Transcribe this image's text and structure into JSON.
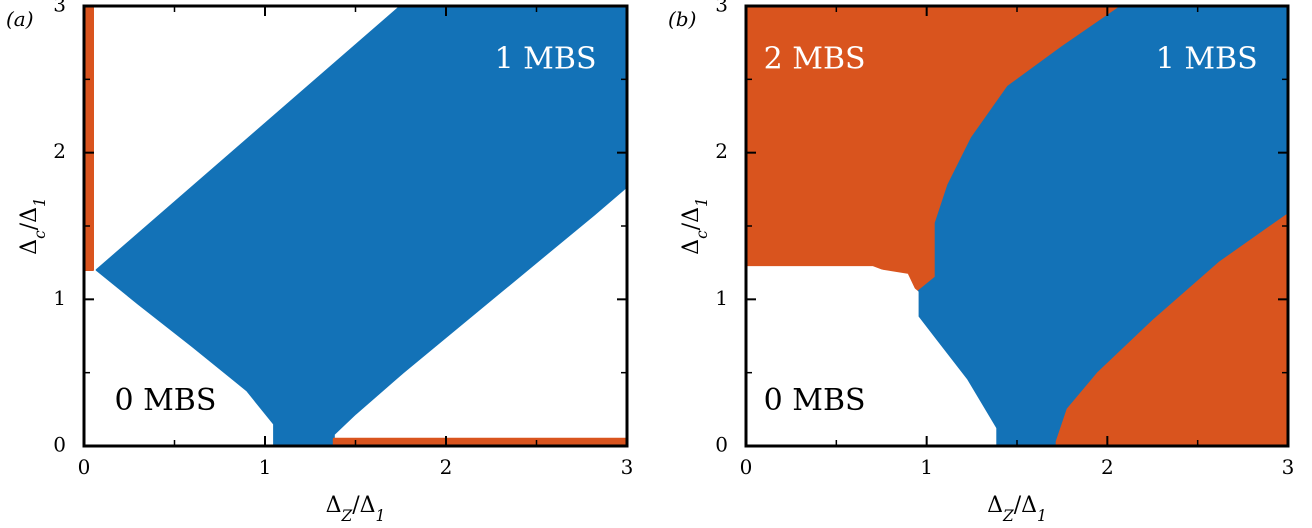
{
  "colors": {
    "orange": "#D9541E",
    "blue": "#1372B7",
    "white": "#FFFFFF",
    "frame": "#000000"
  },
  "chart_data": [
    {
      "type": "phase-diagram",
      "panel_label": "(a)",
      "xlabel": "ΔZ/Δ1",
      "ylabel": "Δc/Δ1",
      "xlim": [
        0,
        3
      ],
      "ylim": [
        0,
        3
      ],
      "xticks": [
        "0",
        "1",
        "2",
        "3"
      ],
      "yticks": [
        "0",
        "1",
        "2",
        "3"
      ],
      "regions": [
        {
          "label": "0 MBS",
          "label_at": [
            0.45,
            0.3
          ],
          "color": "white",
          "points": [
            [
              0,
              0
            ],
            [
              1.05,
              0
            ],
            [
              1.05,
              0.15
            ],
            [
              0.9,
              0.38
            ],
            [
              0.6,
              0.68
            ],
            [
              0.3,
              0.97
            ],
            [
              0.07,
              1.2
            ],
            [
              0,
              1.2
            ]
          ]
        },
        {
          "label": "1 MBS",
          "label_at": [
            2.55,
            2.63
          ],
          "color": "blue",
          "points": [
            [
              1.05,
              0
            ],
            [
              1.38,
              0
            ],
            [
              1.38,
              0.08
            ],
            [
              1.5,
              0.22
            ],
            [
              1.76,
              0.5
            ],
            [
              2.3,
              1.05
            ],
            [
              2.82,
              1.58
            ],
            [
              3.0,
              1.77
            ],
            [
              3.0,
              3.0
            ],
            [
              1.75,
              3.0
            ],
            [
              0.07,
              1.2
            ],
            [
              0.3,
              0.97
            ],
            [
              0.6,
              0.68
            ],
            [
              0.9,
              0.38
            ],
            [
              1.05,
              0.15
            ]
          ]
        },
        {
          "label": "",
          "color": "orange",
          "points": [
            [
              0,
              1.2
            ],
            [
              0.05,
              1.2
            ],
            [
              0.05,
              3.0
            ],
            [
              0,
              3.0
            ]
          ]
        },
        {
          "label": "",
          "color": "orange",
          "points": [
            [
              1.38,
              0
            ],
            [
              3.0,
              0
            ],
            [
              3.0,
              0.05
            ],
            [
              1.38,
              0.05
            ]
          ]
        }
      ]
    },
    {
      "type": "phase-diagram",
      "panel_label": "(b)",
      "xlabel": "ΔZ/Δ1",
      "ylabel": "Δc/Δ1",
      "xlim": [
        0,
        3
      ],
      "ylim": [
        0,
        3
      ],
      "xticks": [
        "0",
        "1",
        "2",
        "3"
      ],
      "yticks": [
        "0",
        "1",
        "2",
        "3"
      ],
      "regions": [
        {
          "label": "2 MBS",
          "label_at": [
            0.38,
            2.63
          ],
          "color": "orange",
          "points": [
            [
              0,
              1.22
            ],
            [
              0,
              3.0
            ],
            [
              2.08,
              3.0
            ],
            [
              1.75,
              2.72
            ],
            [
              1.45,
              2.45
            ],
            [
              1.25,
              2.1
            ],
            [
              1.12,
              1.78
            ],
            [
              1.05,
              1.52
            ],
            [
              1.05,
              1.15
            ],
            [
              0.95,
              1.05
            ],
            [
              0.9,
              1.18
            ],
            [
              0.7,
              1.22
            ]
          ]
        },
        {
          "label": "1 MBS",
          "label_at": [
            2.55,
            2.63
          ],
          "color": "blue",
          "points": [
            [
              2.08,
              3.0
            ],
            [
              3.0,
              3.0
            ],
            [
              3.0,
              1.58
            ],
            [
              2.62,
              1.25
            ],
            [
              2.25,
              0.85
            ],
            [
              1.95,
              0.5
            ],
            [
              1.78,
              0.25
            ],
            [
              1.72,
              0.03
            ],
            [
              1.72,
              0
            ],
            [
              1.38,
              0
            ],
            [
              1.38,
              0.12
            ],
            [
              1.22,
              0.45
            ],
            [
              1.05,
              0.72
            ],
            [
              0.95,
              0.88
            ],
            [
              0.95,
              1.05
            ],
            [
              1.05,
              1.15
            ],
            [
              1.05,
              1.52
            ],
            [
              1.12,
              1.78
            ],
            [
              1.25,
              2.1
            ],
            [
              1.45,
              2.45
            ],
            [
              1.75,
              2.72
            ]
          ]
        },
        {
          "label": "",
          "color": "orange",
          "points": [
            [
              1.72,
              0
            ],
            [
              3.0,
              0
            ],
            [
              3.0,
              1.58
            ],
            [
              2.62,
              1.25
            ],
            [
              2.25,
              0.85
            ],
            [
              1.95,
              0.5
            ],
            [
              1.78,
              0.25
            ],
            [
              1.72,
              0.03
            ]
          ]
        },
        {
          "label": "0 MBS",
          "label_at": [
            0.38,
            0.3
          ],
          "color": "white",
          "points": [
            [
              0,
              0
            ],
            [
              1.38,
              0
            ],
            [
              1.38,
              0.12
            ],
            [
              1.22,
              0.45
            ],
            [
              1.05,
              0.72
            ],
            [
              0.95,
              0.88
            ],
            [
              0.95,
              1.05
            ],
            [
              0.85,
              1.15
            ],
            [
              0.7,
              1.22
            ],
            [
              0,
              1.22
            ]
          ]
        }
      ]
    }
  ]
}
